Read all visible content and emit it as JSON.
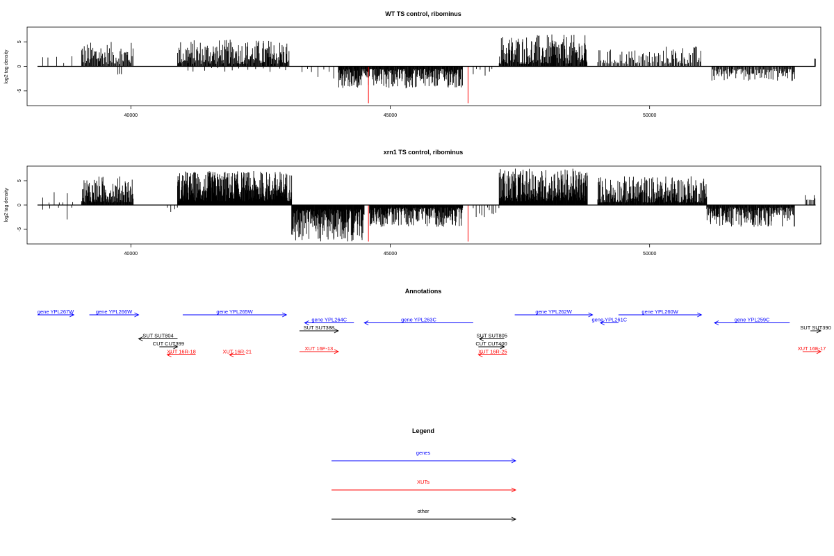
{
  "chart_data": [
    {
      "type": "bar",
      "title": "WT TS control, ribominus",
      "ylabel": "log2 tag density",
      "xlim": [
        38000,
        53300
      ],
      "ylim": [
        -8,
        8
      ],
      "xticks": [
        40000,
        45000,
        50000
      ],
      "yticks": [
        -5,
        0,
        5
      ],
      "baseline": [
        38200,
        53200
      ],
      "highlight_color": "#ff0000",
      "highlight": [
        {
          "x": 44580,
          "y": -7.5
        },
        {
          "x": 46500,
          "y": -7.5
        }
      ],
      "density": [
        {
          "range": [
            38300,
            38900
          ],
          "sign": 1,
          "min": 0.5,
          "max": 3.2,
          "step": 120
        },
        {
          "range": [
            39050,
            40050
          ],
          "sign": 1,
          "min": 0.5,
          "max": 5.0,
          "step": 14
        },
        {
          "range": [
            39750,
            39820
          ],
          "sign": -1,
          "min": 1.5,
          "max": 2.0,
          "step": 30
        },
        {
          "range": [
            40900,
            43050
          ],
          "sign": 1,
          "min": 0.5,
          "max": 5.5,
          "step": 11
        },
        {
          "range": [
            41100,
            43100
          ],
          "sign": -1,
          "min": 0.3,
          "max": 1.2,
          "step": 160
        },
        {
          "range": [
            43300,
            44300
          ],
          "sign": -1,
          "min": 0.5,
          "max": 2.5,
          "step": 90
        },
        {
          "range": [
            44000,
            46400
          ],
          "sign": -1,
          "min": 0.5,
          "max": 4.5,
          "step": 9
        },
        {
          "range": [
            46600,
            47000
          ],
          "sign": -1,
          "min": 0.5,
          "max": 2.0,
          "step": 70
        },
        {
          "range": [
            47100,
            48800
          ],
          "sign": 1,
          "min": 0.5,
          "max": 6.5,
          "step": 10
        },
        {
          "range": [
            49000,
            50300
          ],
          "sign": 1,
          "min": 0.5,
          "max": 3.5,
          "step": 22
        },
        {
          "range": [
            50300,
            51000
          ],
          "sign": 1,
          "min": 0.5,
          "max": 4.2,
          "step": 18
        },
        {
          "range": [
            51200,
            52800
          ],
          "sign": -1,
          "min": 0.5,
          "max": 3.0,
          "step": 15
        },
        {
          "range": [
            53180,
            53200
          ],
          "sign": 1,
          "min": 1.5,
          "max": 2.0,
          "step": 20
        }
      ]
    },
    {
      "type": "bar",
      "title": "xrn1 TS control, ribominus",
      "ylabel": "log2 tag density",
      "xlim": [
        38000,
        53300
      ],
      "ylim": [
        -8,
        8
      ],
      "xticks": [
        40000,
        45000,
        50000
      ],
      "yticks": [
        -5,
        0,
        5
      ],
      "baseline": [
        38200,
        53200
      ],
      "highlight_color": "#ff0000",
      "highlight": [
        {
          "x": 44580,
          "y": -7.5
        },
        {
          "x": 46500,
          "y": -7.5
        }
      ],
      "density": [
        {
          "range": [
            38300,
            38950
          ],
          "sign": 1,
          "min": 0.5,
          "max": 3.0,
          "step": 90
        },
        {
          "range": [
            38300,
            38950
          ],
          "sign": -1,
          "min": 0.5,
          "max": 3.0,
          "step": 130
        },
        {
          "range": [
            39050,
            40050
          ],
          "sign": 1,
          "min": 0.5,
          "max": 6.0,
          "step": 8
        },
        {
          "range": [
            40700,
            40900
          ],
          "sign": -1,
          "min": 0.5,
          "max": 1.5,
          "step": 60
        },
        {
          "range": [
            40900,
            43100
          ],
          "sign": 1,
          "min": 0.8,
          "max": 7.0,
          "step": 5
        },
        {
          "range": [
            43100,
            44500
          ],
          "sign": -1,
          "min": 0.8,
          "max": 7.5,
          "step": 6
        },
        {
          "range": [
            44600,
            46400
          ],
          "sign": -1,
          "min": 0.5,
          "max": 4.5,
          "step": 7
        },
        {
          "range": [
            46600,
            47100
          ],
          "sign": -1,
          "min": 0.5,
          "max": 3.0,
          "step": 45
        },
        {
          "range": [
            47100,
            48800
          ],
          "sign": 1,
          "min": 0.8,
          "max": 7.5,
          "step": 6
        },
        {
          "range": [
            49000,
            51100
          ],
          "sign": 1,
          "min": 0.5,
          "max": 6.0,
          "step": 8
        },
        {
          "range": [
            51100,
            52800
          ],
          "sign": -1,
          "min": 0.5,
          "max": 4.5,
          "step": 9
        },
        {
          "range": [
            53000,
            53200
          ],
          "sign": 1,
          "min": 1.0,
          "max": 3.0,
          "step": 25
        }
      ]
    },
    {
      "type": "annotation-track",
      "title": "Annotations",
      "xlim": [
        38000,
        53300
      ],
      "features": [
        {
          "label": "gene YPL267W",
          "start": 38200,
          "end": 38900,
          "dir": 1,
          "row": 0,
          "color": "#0000ff"
        },
        {
          "label": "gene YPL266W",
          "start": 39200,
          "end": 40150,
          "dir": 1,
          "row": 0,
          "color": "#0000ff"
        },
        {
          "label": "gene YPL265W",
          "start": 41000,
          "end": 43000,
          "dir": 1,
          "row": 0,
          "color": "#0000ff"
        },
        {
          "label": "gene YPL264C",
          "start": 43350,
          "end": 44300,
          "dir": -1,
          "row": 1,
          "color": "#0000ff"
        },
        {
          "label": "gene YPL263C",
          "start": 44500,
          "end": 46600,
          "dir": -1,
          "row": 1,
          "color": "#0000ff"
        },
        {
          "label": "gene YPL262W",
          "start": 47400,
          "end": 48900,
          "dir": 1,
          "row": 0,
          "color": "#0000ff"
        },
        {
          "label": "gene YPL261C",
          "start": 49050,
          "end": 49400,
          "dir": -1,
          "row": 1,
          "color": "#0000ff"
        },
        {
          "label": "gene YPL260W",
          "start": 49400,
          "end": 51000,
          "dir": 1,
          "row": 0,
          "color": "#0000ff"
        },
        {
          "label": "gene YPL259C",
          "start": 51250,
          "end": 52700,
          "dir": -1,
          "row": 1,
          "color": "#0000ff"
        },
        {
          "label": "SUT SUT804",
          "start": 40150,
          "end": 40900,
          "dir": -1,
          "row": 3,
          "color": "#000000"
        },
        {
          "label": "CUT CUT399",
          "start": 40550,
          "end": 40900,
          "dir": 1,
          "row": 4,
          "color": "#000000"
        },
        {
          "label": "SUT SUT388",
          "start": 43250,
          "end": 44000,
          "dir": 1,
          "row": 2,
          "color": "#000000"
        },
        {
          "label": "SUT SUT805",
          "start": 46720,
          "end": 47200,
          "dir": -1,
          "row": 3,
          "color": "#000000"
        },
        {
          "label": "CUT CUT400",
          "start": 46700,
          "end": 47200,
          "dir": 1,
          "row": 4,
          "color": "#000000"
        },
        {
          "label": "SUT SUT390",
          "start": 53100,
          "end": 53300,
          "dir": 1,
          "row": 2,
          "color": "#000000"
        },
        {
          "label": "XUT 16R-18",
          "start": 40700,
          "end": 41250,
          "dir": -1,
          "row": 5,
          "color": "#ff0000"
        },
        {
          "label": "XUT 16R-21",
          "start": 41900,
          "end": 42200,
          "dir": -1,
          "row": 5,
          "color": "#ff0000"
        },
        {
          "label": "XUT 16F-13",
          "start": 43250,
          "end": 44000,
          "dir": 1,
          "row": 4.6,
          "color": "#ff0000"
        },
        {
          "label": "XUT 16R-25",
          "start": 46700,
          "end": 47250,
          "dir": -1,
          "row": 5,
          "color": "#ff0000"
        },
        {
          "label": "XUT 16F-17",
          "start": 52950,
          "end": 53300,
          "dir": 1,
          "row": 4.6,
          "color": "#ff0000"
        }
      ]
    },
    {
      "type": "legend",
      "title": "Legend",
      "entries": [
        {
          "label": "genes",
          "color": "#0000ff"
        },
        {
          "label": "XUTs",
          "color": "#ff0000"
        },
        {
          "label": "other",
          "color": "#000000"
        }
      ]
    }
  ]
}
